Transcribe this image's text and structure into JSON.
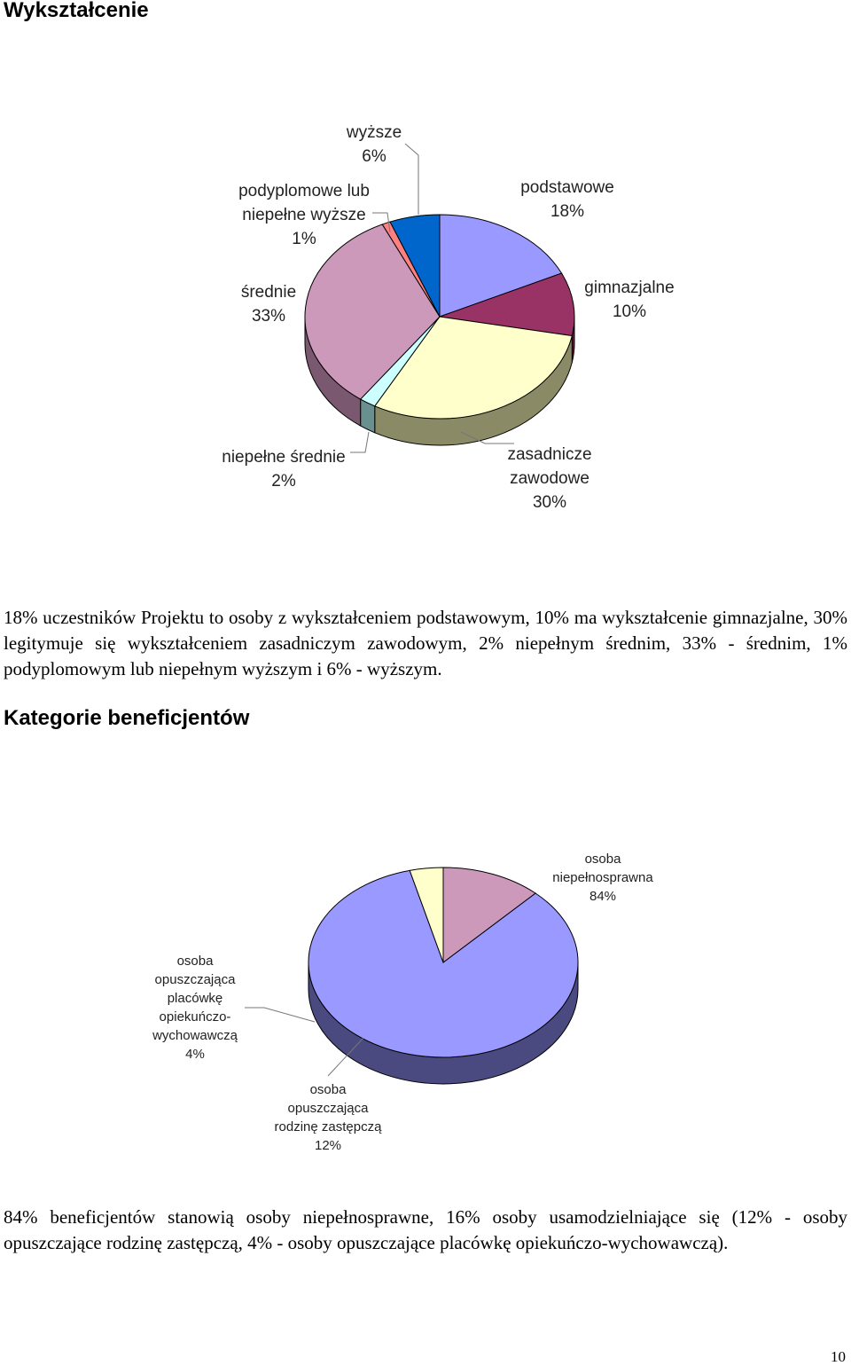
{
  "page": {
    "heading1": "Wykształcenie",
    "paragraph1": "18% uczestników Projektu to osoby z wykształceniem podstawowym, 10% ma wykształcenie gimnazjalne, 30% legitymuje się wykształceniem zasadniczym zawodowym, 2% niepełnym średnim, 33% - średnim, 1% podyplomowym lub niepełnym wyższym i 6% - wyższym.",
    "heading2": "Kategorie beneficjentów",
    "paragraph2": "84% beneficjentów stanowią osoby niepełnosprawne, 16% osoby usamodzielniające się (12% - osoby opuszczające rodzinę zastępczą, 4% - osoby opuszczające placówkę opiekuńczo-wychowawczą).",
    "page_number": "10"
  },
  "chart_data": [
    {
      "type": "pie",
      "style": "3d",
      "categories": [
        "podstawowe",
        "gimnazjalne",
        "zasadnicze zawodowe",
        "niepełne średnie",
        "średnie",
        "podyplomowe lub niepełne wyższe",
        "wyższe"
      ],
      "values": [
        18,
        10,
        30,
        2,
        33,
        1,
        6
      ],
      "labels": [
        [
          "podstawowe",
          "18%"
        ],
        [
          "gimnazjalne",
          "10%"
        ],
        [
          "zasadnicze",
          "zawodowe",
          "30%"
        ],
        [
          "niepełne średnie",
          "2%"
        ],
        [
          "średnie",
          "33%"
        ],
        [
          "podyplomowe lub",
          "niepełne wyższe",
          "1%"
        ],
        [
          "wyższe",
          "6%"
        ]
      ],
      "colors": [
        "#9999ff",
        "#993366",
        "#ffffcc",
        "#ccffff",
        "#cc99bb",
        "#ff8080",
        "#0066cc"
      ],
      "side_colors": [
        "#5a5aa8",
        "#5c1e3d",
        "#8a8a66",
        "#6a8f8f",
        "#7a5870",
        "#a04848",
        "#003d7a"
      ]
    },
    {
      "type": "pie",
      "style": "3d",
      "categories": [
        "osoba niepełnosprawna",
        "osoba opuszczająca rodzinę zastępczą",
        "osoba opuszczająca placówkę opiekuńczo-wychowawczą"
      ],
      "values": [
        84,
        12,
        4
      ],
      "labels": [
        [
          "osoba",
          "niepełnosprawna",
          "84%"
        ],
        [
          "osoba",
          "opuszczająca",
          "rodzinę zastępczą",
          "12%"
        ],
        [
          "osoba",
          "opuszczająca",
          "placówkę",
          "opiekuńczo-",
          "wychowawczą",
          "4%"
        ]
      ],
      "colors": [
        "#9999ff",
        "#cc99bb",
        "#ffffcc"
      ],
      "side_colors": [
        "#4a4a80",
        "#6a4a60",
        "#8a8a66"
      ]
    }
  ]
}
